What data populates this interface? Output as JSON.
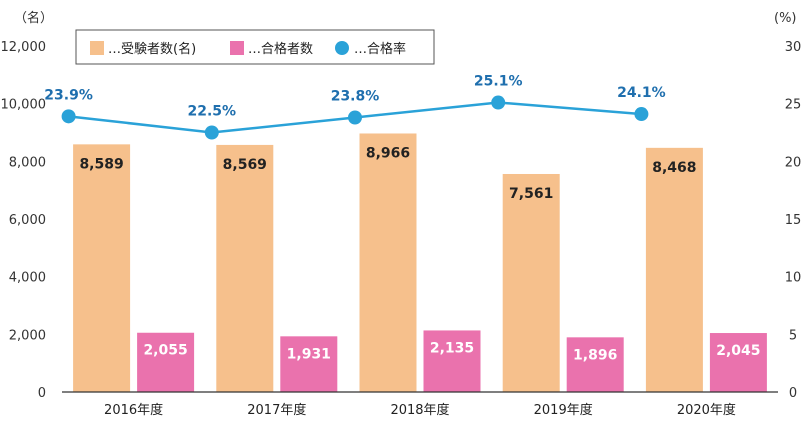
{
  "chart_data": {
    "type": "bar",
    "units": {
      "left": "（名）",
      "right": "(%)"
    },
    "categories": [
      "2016年度",
      "2017年度",
      "2018年度",
      "2019年度",
      "2020年度"
    ],
    "y_left": {
      "min": 0,
      "max": 12000,
      "ticks": [
        "0",
        "2,000",
        "4,000",
        "6,000",
        "8,000",
        "10,000",
        "12,000"
      ]
    },
    "y_right": {
      "min": 0,
      "max": 30,
      "ticks": [
        "0",
        "5",
        "10",
        "15",
        "20",
        "25",
        "30"
      ]
    },
    "legend": {
      "position": "top",
      "items": [
        "…受験者数(名)",
        "…合格者数",
        "…合格率"
      ]
    },
    "series": [
      {
        "name": "受験者数(名)",
        "axis": "left",
        "type": "bar",
        "color": "#f6c08c",
        "values": [
          8589,
          8569,
          8966,
          7561,
          8468
        ],
        "labels": [
          "8,589",
          "8,569",
          "8,966",
          "7,561",
          "8,468"
        ]
      },
      {
        "name": "合格者数",
        "axis": "left",
        "type": "bar",
        "color": "#ea72ad",
        "values": [
          2055,
          1931,
          2135,
          1896,
          2045
        ],
        "labels": [
          "2,055",
          "1,931",
          "2,135",
          "1,896",
          "2,045"
        ]
      },
      {
        "name": "合格率",
        "axis": "right",
        "type": "line",
        "color": "#2aa2d8",
        "values": [
          23.9,
          22.5,
          23.8,
          25.1,
          24.1
        ],
        "labels": [
          "23.9%",
          "22.5%",
          "23.8%",
          "25.1%",
          "24.1%"
        ]
      }
    ],
    "colors": {
      "axis": "#333333",
      "rate_label": "#1f6fae"
    }
  }
}
